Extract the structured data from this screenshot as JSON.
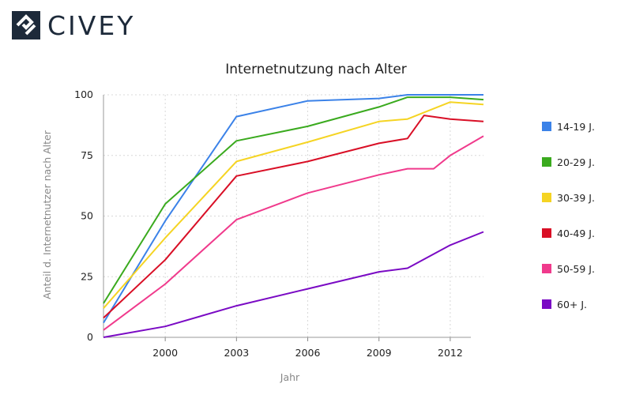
{
  "brand": {
    "name": "CIVEY",
    "color": "#1d2a3a"
  },
  "chart_data": {
    "type": "line",
    "title": "Internetnutzung nach Alter",
    "xlabel": "Jahr",
    "ylabel": "Anteil d. Internetnutzer nach Alter",
    "xlim": [
      1997.4,
      2013.4
    ],
    "ylim": [
      0,
      100
    ],
    "x_ticks": [
      2000,
      2003,
      2006,
      2009,
      2012
    ],
    "y_ticks": [
      0,
      25,
      50,
      75,
      100
    ],
    "grid": true,
    "legend_position": "right",
    "series": [
      {
        "name": "14-19 J.",
        "color": "#3b82e8",
        "x": [
          1997.4,
          2000,
          2003,
          2006,
          2009,
          2010.2,
          2012,
          2013.4
        ],
        "y": [
          6,
          48,
          91,
          97.5,
          98.5,
          100,
          100,
          100
        ]
      },
      {
        "name": "20-29 J.",
        "color": "#3aaa1e",
        "x": [
          1997.4,
          2000,
          2003,
          2006,
          2009,
          2010.2,
          2012,
          2013.4
        ],
        "y": [
          14,
          55,
          81,
          87,
          95,
          99,
          99,
          98
        ]
      },
      {
        "name": "30-39 J.",
        "color": "#f5d423",
        "x": [
          1997.4,
          2000,
          2003,
          2006,
          2009,
          2010.2,
          2012,
          2013.4
        ],
        "y": [
          12,
          41,
          72.5,
          80.5,
          89,
          90,
          97,
          96
        ]
      },
      {
        "name": "40-49 J.",
        "color": "#d90f26",
        "x": [
          1997.4,
          2000,
          2003,
          2006,
          2009,
          2010.2,
          2010.9,
          2012,
          2013.4
        ],
        "y": [
          8,
          32,
          66.5,
          72.5,
          80,
          82,
          91.5,
          90,
          89
        ]
      },
      {
        "name": "50-59 J.",
        "color": "#f03a8c",
        "x": [
          1997.4,
          2000,
          2003,
          2006,
          2009,
          2010.2,
          2011.3,
          2012,
          2013.4
        ],
        "y": [
          3,
          22,
          48.5,
          59.5,
          67,
          69.5,
          69.5,
          75,
          83
        ]
      },
      {
        "name": "60+ J.",
        "color": "#7a0ac4",
        "x": [
          1997.4,
          2000,
          2003,
          2006,
          2009,
          2010.2,
          2012,
          2013.4
        ],
        "y": [
          0,
          4.5,
          13,
          20,
          27,
          28.5,
          38,
          43.5
        ]
      }
    ]
  }
}
